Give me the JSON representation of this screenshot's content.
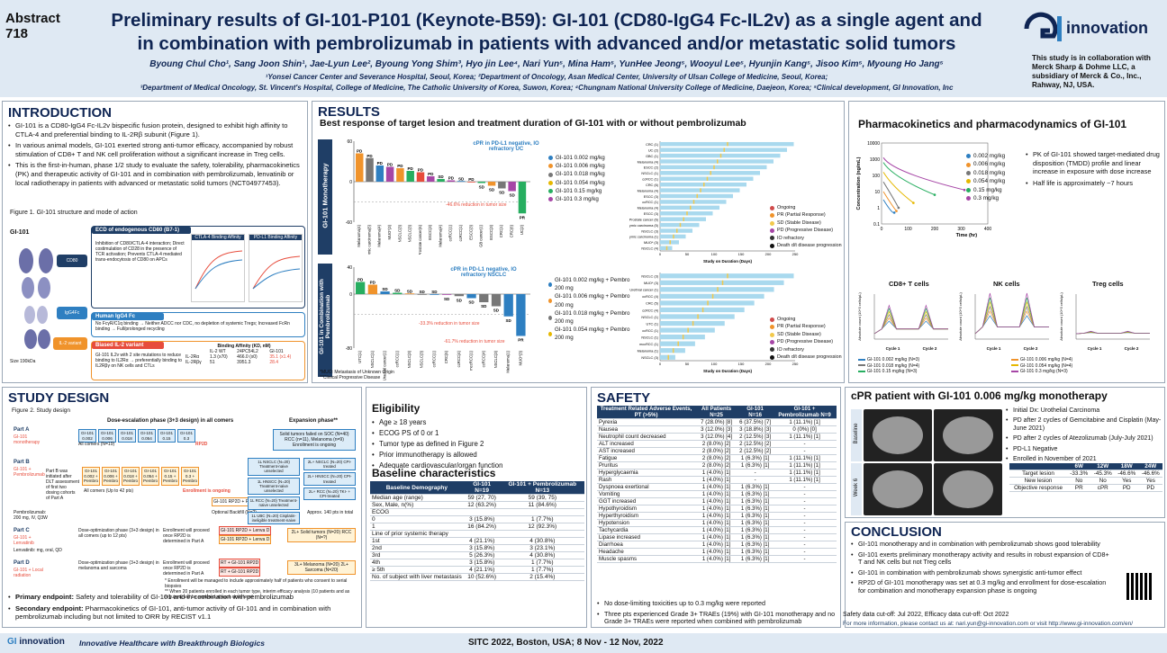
{
  "header": {
    "abstract": "Abstract",
    "abstract_num": "718",
    "title_line1": "Preliminary results of GI-101-P101 (Keynote-B59): GI-101 (CD80-IgG4 Fc-IL2v) as a single agent and",
    "title_line2": "in combination with pembrolizumab in patients with advanced and/or metastatic solid tumors",
    "authors": "Byoung Chul Cho¹, Sang Joon Shin¹, Jae-Lyun Lee², Byoung Yong Shim³, Hyo jin Lee⁴, Nari Yun⁵, Mina Ham⁵, YunHee Jeong⁵, Wooyul Lee⁵, Hyunjin Kang⁵, Jisoo Kim⁵, Myoung Ho Jang⁵",
    "affil1": "¹Yonsei Cancer Center and Severance Hospital, Seoul, Korea; ²Department of Oncology, Asan Medical Center, University of Ulsan College of Medicine, Seoul, Korea;",
    "affil2": "³Department of Medical Oncology, St. Vincent's Hospital, College of Medicine, The Catholic University of Korea, Suwon, Korea; ⁴Chungnam National University College of Medicine, Daejeon, Korea; ⁵Clinical development, GI Innovation, Inc",
    "logo_text": "innovation",
    "collab": "This study is in collaboration with Merck Sharp & Dohme LLC, a subsidiary of Merck & Co., Inc., Rahway, NJ, USA."
  },
  "intro": {
    "title": "INTRODUCTION",
    "bullets": [
      "GI-101 is a CD80-IgG4 Fc-IL2v bispecific fusion protein, designed to exhibit high affinity to CTLA-4 and preferential binding to IL-2Rβ subunit (Figure 1).",
      "In various animal models, GI-101 exerted strong anti-tumor efficacy, accompanied by robust stimulation of CD8+ T and NK cell proliferation without a significant increase in Treg cells.",
      "This is the first-in-human, phase 1/2 study to evaluate the safety, tolerability, pharmacokinetics (PK) and therapeutic activity of GI-101 and in combination with pembrolizumab, lenvatinib or local radiotherapy in patients with advanced or metastatic solid tumors (NCT04977453)."
    ],
    "fig_caption": "Figure 1. GI-101 structure and mode of action",
    "gi101_label": "GI-101",
    "cd80_label": "CD80",
    "igg4_label": "IgG4Fc",
    "il2_label": "IL-2 variant",
    "size_label": "Size 190kDa",
    "box1_title": "ECD of endogenous CD80 (B7-1)",
    "box1_text": "Inhibition of CD80/CTLA-4 interaction; Direct costimulation of CD28 in the presence of TCR activation; Prevents CTLA-4 mediated trans-endocytosis of CD80 on APCs",
    "ctla4_title": "CTLA-4 Binding Affinity",
    "pdl1_title": "PD-L1 Binding Affinity",
    "box2_title": "Human IgG4 Fc",
    "box2_text": "No FcγR/C1q binding → Neither ADCC nor CDC, no depletion of systemic Tregs; Increased FcRn binding → Full/prolonged recycling",
    "box3_title": "Biased IL-2 variant",
    "box3_text": "GI-101 IL2v with 2 site mutations to reduce binding to IL2Rα → preferentially binding to IL2Rβγ on NK cells and CTLs",
    "aff_title": "Binding Affinity (KD, nM)",
    "aff_cols": [
      "IL-2 WT",
      "24PC54L2",
      "GI-101"
    ],
    "aff_rows": [
      {
        "name": "IL-2Rα",
        "vals": [
          "1.3 (x70)",
          "466.0 (x0)",
          "35.1 (x1.4)"
        ]
      },
      {
        "name": "IL-2Rβγ",
        "vals": [
          "51",
          "3951.3",
          "28.4"
        ]
      }
    ]
  },
  "results": {
    "title": "RESULTS",
    "subtitle": "Best response of target lesion and treatment duration of GI-101 with or without pembrolizumab",
    "mono_label": "GI-101 Monotherapy",
    "combo_label": "GI-101 in Combination with Pembrolizumab",
    "mono_note": "cPR in PD-L1 negative, IO refractory UC",
    "mono_red": "-46.6% reduction in tumor size",
    "combo_note": "cPR in PD-L1 negative, IO refractory NSCLC",
    "combo_red1": "-33.3% reduction in tumor size",
    "combo_red2": "-61.7% reduction in tumor size",
    "ylabel": "Best Response of Target Lesions (%)",
    "legend_ongoing": "Ongoing",
    "legend_io": "IO refractory",
    "footnote1": "*MUO: Metastasis of Unknown Origin",
    "footnote2": "**Clinical Progressive Disease",
    "mono_legend": [
      "GI-101 0.002 mg/kg",
      "GI-101 0.006 mg/kg",
      "GI-101 0.018 mg/kg",
      "GI-101 0.054 mg/kg",
      "GI-101 0.15 mg/kg",
      "GI-101 0.3 mg/kg"
    ],
    "combo_legend": [
      "GI-101 0.002 mg/kg + Pembro 200 mg",
      "GI-101 0.006 mg/kg + Pembro 200 mg",
      "GI-101 0.018 mg/kg + Pembro 200 mg",
      "GI-101 0.054 mg/kg + Pembro 200 mg"
    ],
    "swim_legend": [
      "Ongoing",
      "PR (Partial Response)",
      "SD (Stable Disease)",
      "PD (Progressive Disease)",
      "IO refractory",
      "Death d/t disease progression"
    ],
    "swim_xlabel": "Study on Duration (Days)",
    "mono_swim_labels": [
      "CRC (1)",
      "UC (2)",
      "GBC (1)",
      "Melanoma (4)",
      "ESCC (2)",
      "NSCLC (1)",
      "ccRCC (1)",
      "CRC (6)",
      "Melanoma (4)",
      "ESCC (3)",
      "ccRCC (1)",
      "Melanoma (4)",
      "ESCC (3)",
      "Prostate cancer (6)",
      "Thymic carcinoma (5)",
      "NSCLC (3)",
      "Thymic carcinoma (1)",
      "MUO* (3)",
      "NSCLC (4)"
    ],
    "combo_swim_labels": [
      "NSCLC (3)",
      "MUO* (3)",
      "Urethral cancer (1)",
      "ccRCC (4)",
      "CRC (5)",
      "ccRCC (4)",
      "NSCLC (1)",
      "UTC (1)",
      "ccRCC (1)",
      "NSCLC (1)",
      "mccRCC (1)",
      "Melanoma (1)",
      "NSCLC (3)"
    ],
    "mono_bars": [
      {
        "cat": "Melanoma(4)",
        "v": 42,
        "c": "#f0932b",
        "lab": "PD"
      },
      {
        "cat": "Thymic carcinoma(5)",
        "v": 35,
        "c": "#777777",
        "lab": "PD"
      },
      {
        "cat": "Melanoma(4)",
        "v": 24,
        "c": "#2e7fc1",
        "lab": "PD"
      },
      {
        "cat": "MUO*(3)",
        "v": 22,
        "c": "#a646a6",
        "lab": "PD"
      },
      {
        "cat": "NSCLC(3)",
        "v": 20,
        "c": "#f0932b",
        "lab": "PD"
      },
      {
        "cat": "NSCLC(3)",
        "v": 16,
        "c": "#27ae60",
        "lab": "PD"
      },
      {
        "cat": "Prostate cancer(6)",
        "v": 14,
        "c": "#e74c3c",
        "lab": "PD"
      },
      {
        "cat": "ESCC(3)",
        "v": 8,
        "c": "#a646a6",
        "lab": "PD"
      },
      {
        "cat": "Melanoma(4)",
        "v": 4,
        "c": "#27ae60",
        "lab": "SD"
      },
      {
        "cat": "ccRCC(1)",
        "v": 2,
        "c": "#a646a6",
        "lab": "PD"
      },
      {
        "cat": "ccRCC(1)",
        "v": 1,
        "c": "#2e7fc1",
        "lab": "SD"
      },
      {
        "cat": "ESCC(3)",
        "v": 0,
        "c": "#e74c3c",
        "lab": "PD"
      },
      {
        "cat": "GB cancer(1)",
        "v": -2,
        "c": "#27ae60",
        "lab": "SD"
      },
      {
        "cat": "ESCC(3)",
        "v": -6,
        "c": "#f0932b",
        "lab": "SD"
      },
      {
        "cat": "CRC(1)",
        "v": -10,
        "c": "#777777",
        "lab": "SD"
      },
      {
        "cat": "CRC(6)",
        "v": -14,
        "c": "#a646a6",
        "lab": "SD"
      },
      {
        "cat": "UC(2)",
        "v": -47,
        "c": "#27ae60",
        "lab": "PR"
      }
    ],
    "combo_bars": [
      {
        "cat": "UTC(1)",
        "v": 18,
        "c": "#27ae60",
        "lab": "PD"
      },
      {
        "cat": "NSCLC(1)",
        "v": 14,
        "c": "#f0932b",
        "lab": "PD"
      },
      {
        "cat": "Urachal cancer(1)",
        "v": 4,
        "c": "#2e7fc1",
        "lab": "SD"
      },
      {
        "cat": "ccRCC(1)",
        "v": 2,
        "c": "#27ae60",
        "lab": "SD"
      },
      {
        "cat": "NSCLC(3)",
        "v": 1,
        "c": "#f0932b",
        "lab": "SD"
      },
      {
        "cat": "NSCLC(3)",
        "v": 0,
        "c": "#777777",
        "lab": "SD"
      },
      {
        "cat": "ccRCC(1)",
        "v": 0,
        "c": "#2e7fc1",
        "lab": "SD"
      },
      {
        "cat": "CRC(5)",
        "v": -1,
        "c": "#a646a6",
        "lab": "SD"
      },
      {
        "cat": "ccRCC(4)",
        "v": -3,
        "c": "#777777",
        "lab": "SD"
      },
      {
        "cat": "mccRCC(1)",
        "v": -6,
        "c": "#2e7fc1",
        "lab": "SD"
      },
      {
        "cat": "ccRCC(4)",
        "v": -12,
        "c": "#777777",
        "lab": "SD"
      },
      {
        "cat": "NSCLC(3)",
        "v": -18,
        "c": "#777777",
        "lab": "SD"
      },
      {
        "cat": "Melanoma(1)",
        "v": -33,
        "c": "#2e7fc1",
        "lab": "SD"
      },
      {
        "cat": "MUO*(3)",
        "v": -62,
        "c": "#2e7fc1",
        "lab": "PR"
      }
    ]
  },
  "pk": {
    "title": "Pharmacokinetics and pharmacodynamics of GI-101",
    "ylabel": "Concentration (ng/mL)",
    "xlabel": "Time (hr)",
    "yticks": [
      "10000",
      "1000",
      "100",
      "10",
      "1",
      "0.1"
    ],
    "xticks": [
      "0",
      "100",
      "200",
      "300",
      "400"
    ],
    "legend": [
      "0.002 mg/kg",
      "0.006 mg/kg",
      "0.018 mg/kg",
      "0.054 mg/kg",
      "0.15 mg/kg",
      "0.3 mg/kg"
    ],
    "bullets": [
      "PK of GI-101 showed target-mediated drug disposition (TMDD) profile and linear increase in exposure with dose increase",
      "Half life is approximately ~7 hours"
    ],
    "cd8_title": "CD8+ T cells",
    "nk_title": "NK cells",
    "treg_title": "Treg cells",
    "pd_ylabel": "Absolute count (10^3 cells/µL)",
    "cycle1": "Cycle 1",
    "cycle2": "Cycle 2",
    "pd_legend": [
      "GI-101 0.002 mg/kg (N=3)",
      "GI-101 0.006 mg/kg (N=4)",
      "GI-101 0.018 mg/kg (N=4)",
      "GI-101 0.054 mg/kg (N=4)",
      "GI-101 0.15 mg/kg (N=3)",
      "GI-101 0.3 mg/kg (N=3)"
    ]
  },
  "study": {
    "title": "STUDY DESIGN",
    "fig": "Figure 2. Study design",
    "esc_header": "Dose-escalation phase (3+3 design) in all comers",
    "exp_header": "Expansion phase**",
    "partA": "Part A",
    "partA_sub": "GI-101 monotherapy",
    "partA_doses": [
      "GI-101 0.002",
      "GI-101 0.006",
      "GI-101 0.018",
      "GI-101 0.054",
      "GI-101 0.15",
      "GI-101 0.3"
    ],
    "rp2d": "RP2D",
    "allcomers": "All comers (N=19)",
    "partA_exp": "Solid tumors failed on SOC (N=40) RCC (n=11), Melanoma (n=9) Enrollment is ongoing",
    "partB": "Part B",
    "partB_sub": "GI-101 + Pembrolizumab",
    "partB_note": "Part B was initiated after DLT assessment of first two dosing cohorts of Part A",
    "partB_doses": [
      "GI-101 0.002 + Pembro",
      "GI-101 0.006 + Pembro",
      "GI-101 0.018 + Pembro",
      "GI-101 0.054 + Pembro",
      "GI-101 0.15 + Pembro",
      "GI-101 0.3 + Pembro"
    ],
    "partB_allcomers": "All comers (Up to 42 pts)",
    "enroll_ongoing": "Enrollment is ongoing",
    "partB_exp": [
      "1L NSCLC (N=20) Treatment-naive unselected",
      "1L HNSCC (N=20) Treatment-naive unselected",
      "1L RCC (N=20) Treatment-naive unselected",
      "1L UBC (N=20) Cisplatin-ineligible treatment-naive"
    ],
    "partB_exp2": [
      "2L+ NSCLC (N=20) CPI-treated",
      "2L+ HNSCC (N=20) CPI-treated",
      "2L+ RCC (N=20) TKI- + CPI-treated"
    ],
    "backfill": "Optional Backfill (N=?)",
    "rp2d_pembro": "GI-101 RP2D + Pembro",
    "approx": "Approx. 140 pts in total",
    "pembro_dose": "Pembrolizumab: 200 mg, IV, Q3W",
    "partC": "Part C",
    "partC_sub": "GI-101 + Lenvatinib",
    "partC_esc": "Dose-optimization phase (3+3 design) in all comers (up to 12 pts)",
    "partC_enroll": "Enrollment will proceed once RP2D is determined in Part A",
    "partC_b1": "GI-101 RP2D + Lenva D",
    "partC_b2": "GI-101 RP2D + Lenva D",
    "partC_exp": "2L+ Solid tumors (N=20) RCC (N=?)",
    "lenva_dose": "Lenvatinib: mg, oral, QD",
    "partD": "Part D",
    "partD_sub": "GI-101 + Local radiation",
    "partD_esc": "Dose-optimization phase (3+3 design) in melanoma and sarcoma",
    "partD_enroll": "Enrollment will proceed once RP2D is determined in Part A",
    "partD_b1": "RT + GI-101 RP2D",
    "partD_b2": "RT + GI-101 RP2D",
    "partD_exp": "3L+ Melanoma (N=20) 2L+ Sarcoma (N=20)",
    "foot1": "* Enrollment will be managed to include approximately half of patients who consent to serial biopsies",
    "foot2": "** When 20 patients enrolled in each tumor type, interim efficacy analysis (10 patients and as required) will be explored at each dose level",
    "primary_lbl": "Primary endpoint:",
    "primary": "Safety and tolerability of GI-101 and in combination with pembrolizumab",
    "secondary_lbl": "Secondary endpoint:",
    "secondary": "Pharmacokinetics of GI-101, anti-tumor activity of GI-101 and in combination with pembrolizumab including but not limited to ORR by RECIST v1.1"
  },
  "elig": {
    "title": "Eligibility",
    "items": [
      "Age ≥ 18 years",
      "ECOG PS of 0 or 1",
      "Tumor type as defined in Figure 2",
      "Prior immunotherapy is allowed",
      "Adequate cardiovascular/organ function"
    ]
  },
  "baseline": {
    "title": "Baseline characteristics",
    "cols": [
      "Baseline Demography",
      "GI-101 N=19",
      "GI-101 + Pembrolizumab N=13"
    ],
    "rows": [
      [
        "Median age (range)",
        "59 (27, 70)",
        "59 (39, 75)"
      ],
      [
        "Sex, Male, n(%)",
        "12 (63.2%)",
        "11 (84.6%)"
      ],
      [
        "ECOG",
        "",
        ""
      ],
      [
        "0",
        "3 (15.8%)",
        "1 (7.7%)"
      ],
      [
        "1",
        "16 (84.2%)",
        "12 (92.3%)"
      ],
      [
        "Line of prior systemic therapy",
        "",
        ""
      ],
      [
        "1st",
        "4 (21.1%)",
        "4 (30.8%)"
      ],
      [
        "2nd",
        "3 (15.8%)",
        "3 (23.1%)"
      ],
      [
        "3rd",
        "5 (26.3%)",
        "4 (30.8%)"
      ],
      [
        "4th",
        "3 (15.8%)",
        "1 (7.7%)"
      ],
      [
        "≥ 5th",
        "4 (21.1%)",
        "1 (7.7%)"
      ],
      [
        "No. of subject with liver metastasis",
        "10 (52.6%)",
        "2 (15.4%)"
      ]
    ]
  },
  "safety": {
    "title": "SAFETY",
    "cols": [
      "Treatment Related Adverse Events, PT (>5%)",
      "All Patients N=25",
      "GI-101 N=16",
      "GI-101 + Pembrolizumab N=9"
    ],
    "rows": [
      [
        "Pyrexia",
        "7 (28.0%) [8]",
        "6 (37.5%) [7]",
        "1 (11.1%) [1]"
      ],
      [
        "Nausea",
        "3 (12.0%) [3]",
        "3 (18.8%) [3]",
        "0 (0%) [0]"
      ],
      [
        "Neutrophil count decreased",
        "3 (12.0%) [4]",
        "2 (12.5%) [3]",
        "1 (11.1%) [1]"
      ],
      [
        "ALT increased",
        "2 (8.0%) [2]",
        "2 (12.5%) [2]",
        "-"
      ],
      [
        "AST increased",
        "2 (8.0%) [2]",
        "2 (12.5%) [2]",
        "-"
      ],
      [
        "Fatigue",
        "2 (8.0%) [2]",
        "1 (6.3%) [1]",
        "1 (11.1%) [1]"
      ],
      [
        "Pruritus",
        "2 (8.0%) [2]",
        "1 (6.3%) [1]",
        "1 (11.1%) [1]"
      ],
      [
        "Hyperglycaemia",
        "1 (4.0%) [1]",
        "-",
        "1 (11.1%) [1]"
      ],
      [
        "Rash",
        "1 (4.0%) [1]",
        "-",
        "1 (11.1%) [1]"
      ],
      [
        "Dyspnoea exertional",
        "1 (4.0%) [1]",
        "1 (6.3%) [1]",
        "-"
      ],
      [
        "Vomiting",
        "1 (4.0%) [1]",
        "1 (6.3%) [1]",
        "-"
      ],
      [
        "GGT increased",
        "1 (4.0%) [1]",
        "1 (6.3%) [1]",
        "-"
      ],
      [
        "Hypothyroidism",
        "1 (4.0%) [1]",
        "1 (6.3%) [1]",
        "-"
      ],
      [
        "Hyperthyroidism",
        "1 (4.0%) [1]",
        "1 (6.3%) [1]",
        "-"
      ],
      [
        "Hypotension",
        "1 (4.0%) [1]",
        "1 (6.3%) [1]",
        "-"
      ],
      [
        "Tachycardia",
        "1 (4.0%) [1]",
        "1 (6.3%) [1]",
        "-"
      ],
      [
        "Lipase increased",
        "1 (4.0%) [1]",
        "1 (6.3%) [1]",
        "-"
      ],
      [
        "Diarrhoea",
        "1 (4.0%) [1]",
        "1 (6.3%) [1]",
        "-"
      ],
      [
        "Headache",
        "1 (4.0%) [1]",
        "1 (6.3%) [1]",
        "-"
      ],
      [
        "Muscle spasms",
        "1 (4.0%) [1]",
        "1 (6.3%) [1]",
        "-"
      ]
    ],
    "bullets": [
      "No dose-limiting toxicities up to 0.3 mg/kg were reported",
      "Three pts experienced Grade 3+ TRAEs (19%) with GI-101 monotherapy and no Grade 3+ TRAEs were reported when combined with pembrolizumab"
    ]
  },
  "cpr": {
    "title": "cPR patient with GI-101 0.006 mg/kg monotherapy",
    "baseline": "Baseline",
    "week6": "Week 6",
    "bullets": [
      "Initial Dx: Urothelial Carcinoma",
      "PD after 2 cycles of Gemcitabine and Cisplatin (May-June 2021)",
      "PD after 2 cycles of Atezolizumab (July-July 2021)",
      "PD-L1 Negative",
      "Enrolled in November of 2021"
    ],
    "cols": [
      "",
      "6W",
      "12W",
      "18W",
      "24W"
    ],
    "rows": [
      [
        "Target lesion",
        "-33.3%",
        "-45.3%",
        "-46.6%",
        "-46.6%"
      ],
      [
        "New lesion",
        "No",
        "No",
        "Yes",
        "Yes"
      ],
      [
        "Objective response",
        "PR",
        "cPR",
        "PD",
        "PD"
      ]
    ]
  },
  "conclusion": {
    "title": "CONCLUSION",
    "bullets": [
      "GI-101 monotherapy and in combination with pembrolizumab shows good tolerability",
      "GI-101 exerts preliminary monotherapy activity and results in robust expansion of CD8+ T and NK cells but not Treg cells",
      "GI-101 in combination with pembrolizumab shows synergistic anti-tumor effect",
      "RP2D of GI-101 monotherapy was set at 0.3 mg/kg and enrollment for dose-escalation for combination and monotherapy expansion phase is ongoing"
    ],
    "cutoff": "Safety data cut-off: Jul 2022, Efficacy data cut-off: Oct 2022",
    "contact": "For more information, please contact us at: nari.yun@gi-innovation.com or visit http://www.gi-innovation.com/en/"
  },
  "footer": {
    "logo": "innovation",
    "tagline": "Innovative Healthcare with Breakthrough Biologics",
    "meeting": "SITC 2022, Boston, USA; 8 Nov - 12 Nov, 2022"
  },
  "colors": {
    "navy": "#0f2553",
    "blue": "#2e7fc1",
    "orange": "#f0932b",
    "green": "#27ae60",
    "red": "#e74c3c",
    "purple": "#a646a6",
    "gray": "#777777"
  }
}
